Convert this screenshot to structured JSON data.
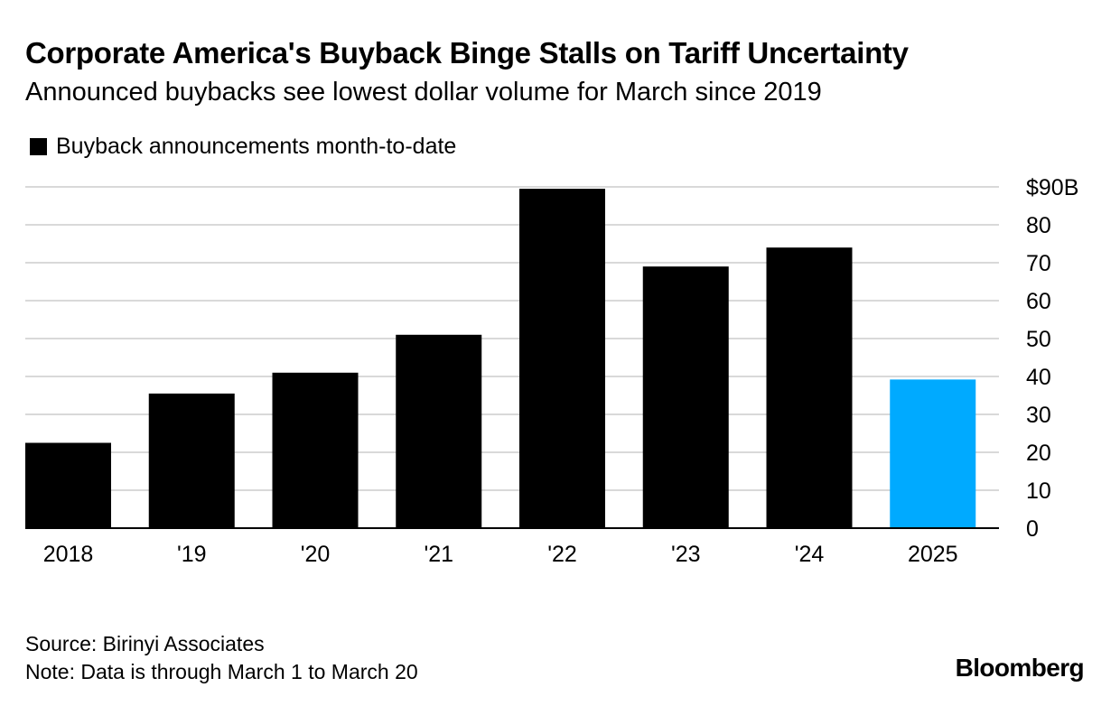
{
  "chart_data": {
    "type": "bar",
    "title": "Corporate America's Buyback Binge Stalls on Tariff Uncertainty",
    "subtitle": "Announced buybacks see lowest dollar volume for March since 2019",
    "legend": "Buyback announcements month-to-date",
    "categories": [
      "2018",
      "'19",
      "'20",
      "'21",
      "'22",
      "'23",
      "'24",
      "2025"
    ],
    "values": [
      22.5,
      35.5,
      41,
      51,
      89.5,
      69,
      74,
      39.2
    ],
    "highlight_index": 7,
    "ylim": [
      0,
      90
    ],
    "yticks": [
      0,
      10,
      20,
      30,
      40,
      50,
      60,
      70,
      80,
      90
    ],
    "ytick_labels": [
      "0",
      "10",
      "20",
      "30",
      "40",
      "50",
      "60",
      "70",
      "80",
      "$90B"
    ],
    "xlabel": "",
    "ylabel": "",
    "grid": true,
    "y_axis_side": "right"
  },
  "colors": {
    "bar": "#000000",
    "highlight": "#00aaff",
    "grid": "#d9d9d9",
    "axis": "#000000"
  },
  "footer": {
    "source": "Source: Birinyi Associates",
    "note": "Note: Data is through March 1 to March 20"
  },
  "brand": "Bloomberg"
}
